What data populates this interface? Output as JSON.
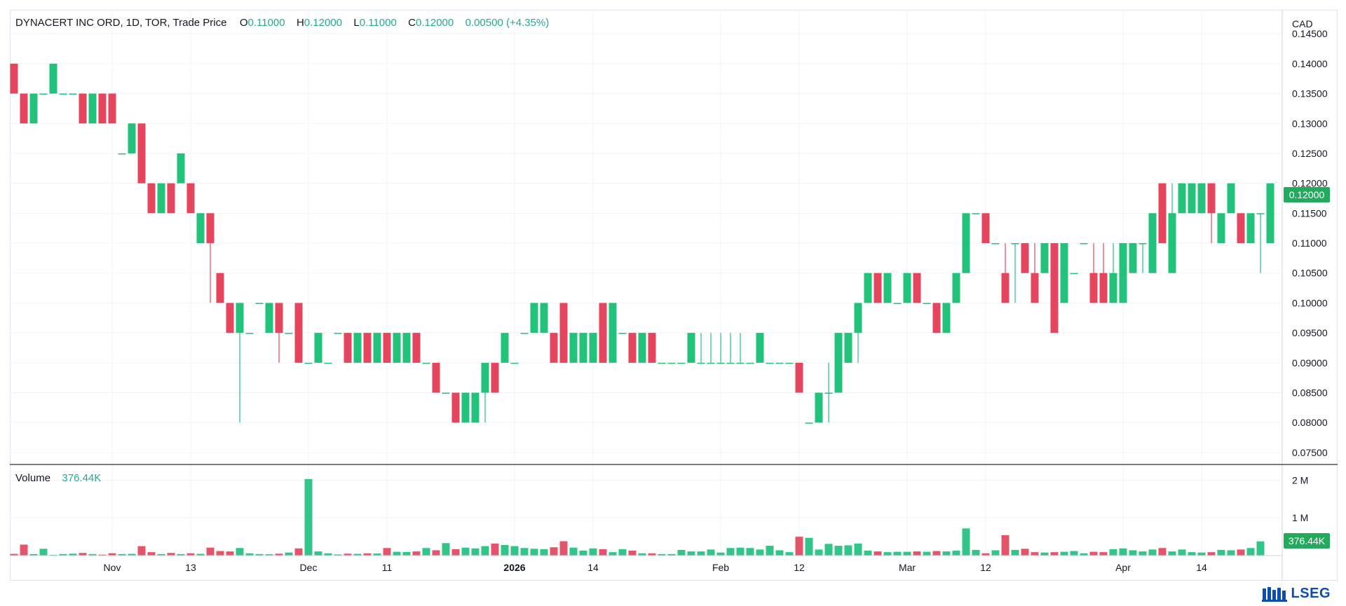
{
  "legend": {
    "symbol": "DYNACERT INC ORD, 1D, TOR, Trade Price",
    "o_label": "O",
    "o_value": "0.11000",
    "h_label": "H",
    "h_value": "0.12000",
    "l_label": "L",
    "l_value": "0.11000",
    "c_label": "C",
    "c_value": "0.12000",
    "change": "0.00500 (+4.35%)"
  },
  "volume_legend": {
    "label": "Volume",
    "value": "376.44K"
  },
  "currency": "CAD",
  "last_price_label": "0.12000",
  "last_volume_label": "376.44K",
  "brand": "LSEG",
  "colors": {
    "up": "#22c27a",
    "down": "#e5465e",
    "volume_up": "#33c48a",
    "volume_down": "#e4556b",
    "grid": "#f0f3fa",
    "text": "#131722"
  },
  "chart_data": {
    "type": "candlestick",
    "price_axis": {
      "ticks": [
        "0.14500",
        "0.14000",
        "0.13500",
        "0.13000",
        "0.12500",
        "0.12000",
        "0.11500",
        "0.11000",
        "0.10500",
        "0.10000",
        "0.09500",
        "0.09000",
        "0.08500",
        "0.08000",
        "0.07500"
      ],
      "range": [
        0.073,
        0.149
      ]
    },
    "volume_axis": {
      "ticks": [
        "2 M",
        "1 M"
      ],
      "range": [
        0,
        2100000
      ]
    },
    "x_axis_labels": [
      {
        "text": "Nov",
        "index": 10,
        "bold": false
      },
      {
        "text": "13",
        "index": 18,
        "bold": false
      },
      {
        "text": "Dec",
        "index": 30,
        "bold": false
      },
      {
        "text": "11",
        "index": 38,
        "bold": false
      },
      {
        "text": "2026",
        "index": 51,
        "bold": true
      },
      {
        "text": "14",
        "index": 59,
        "bold": false
      },
      {
        "text": "Feb",
        "index": 72,
        "bold": false
      },
      {
        "text": "12",
        "index": 80,
        "bold": false
      },
      {
        "text": "Mar",
        "index": 91,
        "bold": false
      },
      {
        "text": "12",
        "index": 99,
        "bold": false
      },
      {
        "text": "Apr",
        "index": 113,
        "bold": false
      },
      {
        "text": "14",
        "index": 121,
        "bold": false
      }
    ],
    "candles": [
      [
        0.14,
        0.14,
        0.135,
        0.135
      ],
      [
        0.135,
        0.135,
        0.13,
        0.13
      ],
      [
        0.13,
        0.135,
        0.13,
        0.135
      ],
      [
        0.135,
        0.135,
        0.135,
        0.135
      ],
      [
        0.135,
        0.14,
        0.135,
        0.14
      ],
      [
        0.135,
        0.135,
        0.135,
        0.135
      ],
      [
        0.135,
        0.135,
        0.135,
        0.135
      ],
      [
        0.135,
        0.135,
        0.13,
        0.13
      ],
      [
        0.13,
        0.135,
        0.13,
        0.135
      ],
      [
        0.135,
        0.135,
        0.13,
        0.13
      ],
      [
        0.135,
        0.135,
        0.13,
        0.13
      ],
      [
        0.125,
        0.125,
        0.125,
        0.125
      ],
      [
        0.125,
        0.13,
        0.125,
        0.13
      ],
      [
        0.13,
        0.13,
        0.12,
        0.12
      ],
      [
        0.12,
        0.12,
        0.115,
        0.115
      ],
      [
        0.115,
        0.12,
        0.115,
        0.12
      ],
      [
        0.12,
        0.12,
        0.115,
        0.115
      ],
      [
        0.12,
        0.125,
        0.12,
        0.125
      ],
      [
        0.12,
        0.12,
        0.115,
        0.115
      ],
      [
        0.11,
        0.115,
        0.11,
        0.115
      ],
      [
        0.115,
        0.115,
        0.1,
        0.11
      ],
      [
        0.105,
        0.105,
        0.1,
        0.1
      ],
      [
        0.1,
        0.1,
        0.095,
        0.095
      ],
      [
        0.095,
        0.1,
        0.08,
        0.1
      ],
      [
        0.095,
        0.095,
        0.095,
        0.095
      ],
      [
        0.1,
        0.1,
        0.1,
        0.1
      ],
      [
        0.095,
        0.1,
        0.095,
        0.1
      ],
      [
        0.1,
        0.1,
        0.09,
        0.095
      ],
      [
        0.095,
        0.095,
        0.095,
        0.095
      ],
      [
        0.1,
        0.1,
        0.09,
        0.09
      ],
      [
        0.09,
        0.09,
        0.09,
        0.09
      ],
      [
        0.09,
        0.095,
        0.09,
        0.095
      ],
      [
        0.09,
        0.09,
        0.09,
        0.09
      ],
      [
        0.095,
        0.095,
        0.095,
        0.095
      ],
      [
        0.095,
        0.095,
        0.09,
        0.09
      ],
      [
        0.09,
        0.095,
        0.09,
        0.095
      ],
      [
        0.095,
        0.095,
        0.09,
        0.09
      ],
      [
        0.09,
        0.095,
        0.09,
        0.095
      ],
      [
        0.095,
        0.095,
        0.09,
        0.09
      ],
      [
        0.09,
        0.095,
        0.09,
        0.095
      ],
      [
        0.09,
        0.095,
        0.09,
        0.095
      ],
      [
        0.095,
        0.095,
        0.09,
        0.09
      ],
      [
        0.09,
        0.09,
        0.09,
        0.09
      ],
      [
        0.09,
        0.09,
        0.085,
        0.085
      ],
      [
        0.085,
        0.085,
        0.085,
        0.085
      ],
      [
        0.085,
        0.085,
        0.08,
        0.08
      ],
      [
        0.08,
        0.085,
        0.08,
        0.085
      ],
      [
        0.08,
        0.085,
        0.08,
        0.085
      ],
      [
        0.085,
        0.09,
        0.08,
        0.09
      ],
      [
        0.09,
        0.09,
        0.085,
        0.085
      ],
      [
        0.09,
        0.095,
        0.09,
        0.095
      ],
      [
        0.09,
        0.09,
        0.09,
        0.09
      ],
      [
        0.095,
        0.095,
        0.095,
        0.095
      ],
      [
        0.095,
        0.1,
        0.095,
        0.1
      ],
      [
        0.095,
        0.1,
        0.095,
        0.1
      ],
      [
        0.095,
        0.095,
        0.09,
        0.09
      ],
      [
        0.1,
        0.1,
        0.09,
        0.09
      ],
      [
        0.09,
        0.095,
        0.09,
        0.095
      ],
      [
        0.09,
        0.095,
        0.09,
        0.095
      ],
      [
        0.09,
        0.095,
        0.09,
        0.095
      ],
      [
        0.1,
        0.1,
        0.09,
        0.09
      ],
      [
        0.09,
        0.1,
        0.09,
        0.1
      ],
      [
        0.095,
        0.095,
        0.095,
        0.095
      ],
      [
        0.095,
        0.095,
        0.09,
        0.09
      ],
      [
        0.09,
        0.095,
        0.09,
        0.095
      ],
      [
        0.095,
        0.095,
        0.09,
        0.09
      ],
      [
        0.09,
        0.09,
        0.09,
        0.09
      ],
      [
        0.09,
        0.09,
        0.09,
        0.09
      ],
      [
        0.09,
        0.09,
        0.09,
        0.09
      ],
      [
        0.09,
        0.095,
        0.09,
        0.095
      ],
      [
        0.09,
        0.095,
        0.09,
        0.09
      ],
      [
        0.09,
        0.095,
        0.09,
        0.09
      ],
      [
        0.09,
        0.095,
        0.09,
        0.09
      ],
      [
        0.09,
        0.095,
        0.09,
        0.09
      ],
      [
        0.09,
        0.095,
        0.09,
        0.09
      ],
      [
        0.09,
        0.09,
        0.09,
        0.09
      ],
      [
        0.09,
        0.095,
        0.09,
        0.095
      ],
      [
        0.09,
        0.09,
        0.09,
        0.09
      ],
      [
        0.09,
        0.09,
        0.09,
        0.09
      ],
      [
        0.09,
        0.09,
        0.09,
        0.09
      ],
      [
        0.09,
        0.09,
        0.085,
        0.085
      ],
      [
        0.08,
        0.08,
        0.08,
        0.08
      ],
      [
        0.08,
        0.085,
        0.08,
        0.085
      ],
      [
        0.085,
        0.09,
        0.08,
        0.085
      ],
      [
        0.085,
        0.095,
        0.085,
        0.095
      ],
      [
        0.09,
        0.095,
        0.09,
        0.095
      ],
      [
        0.095,
        0.1,
        0.09,
        0.1
      ],
      [
        0.1,
        0.105,
        0.1,
        0.105
      ],
      [
        0.105,
        0.105,
        0.1,
        0.1
      ],
      [
        0.1,
        0.105,
        0.1,
        0.105
      ],
      [
        0.1,
        0.1,
        0.1,
        0.1
      ],
      [
        0.1,
        0.105,
        0.1,
        0.105
      ],
      [
        0.105,
        0.105,
        0.1,
        0.1
      ],
      [
        0.1,
        0.1,
        0.1,
        0.1
      ],
      [
        0.1,
        0.1,
        0.095,
        0.095
      ],
      [
        0.095,
        0.1,
        0.095,
        0.1
      ],
      [
        0.1,
        0.105,
        0.1,
        0.105
      ],
      [
        0.105,
        0.115,
        0.105,
        0.115
      ],
      [
        0.115,
        0.115,
        0.115,
        0.115
      ],
      [
        0.115,
        0.115,
        0.11,
        0.11
      ],
      [
        0.11,
        0.11,
        0.11,
        0.11
      ],
      [
        0.105,
        0.11,
        0.1,
        0.1
      ],
      [
        0.11,
        0.11,
        0.1,
        0.11
      ],
      [
        0.11,
        0.11,
        0.105,
        0.105
      ],
      [
        0.105,
        0.11,
        0.1,
        0.1
      ],
      [
        0.105,
        0.11,
        0.105,
        0.11
      ],
      [
        0.11,
        0.11,
        0.095,
        0.095
      ],
      [
        0.1,
        0.11,
        0.1,
        0.11
      ],
      [
        0.105,
        0.105,
        0.105,
        0.105
      ],
      [
        0.11,
        0.11,
        0.11,
        0.11
      ],
      [
        0.105,
        0.11,
        0.1,
        0.1
      ],
      [
        0.105,
        0.11,
        0.1,
        0.1
      ],
      [
        0.1,
        0.11,
        0.1,
        0.105
      ],
      [
        0.1,
        0.11,
        0.1,
        0.11
      ],
      [
        0.105,
        0.11,
        0.105,
        0.11
      ],
      [
        0.11,
        0.11,
        0.105,
        0.11
      ],
      [
        0.105,
        0.115,
        0.105,
        0.115
      ],
      [
        0.12,
        0.12,
        0.11,
        0.11
      ],
      [
        0.105,
        0.12,
        0.105,
        0.115
      ],
      [
        0.115,
        0.12,
        0.115,
        0.12
      ],
      [
        0.115,
        0.12,
        0.115,
        0.12
      ],
      [
        0.115,
        0.12,
        0.115,
        0.12
      ],
      [
        0.12,
        0.12,
        0.11,
        0.115
      ],
      [
        0.11,
        0.115,
        0.11,
        0.115
      ],
      [
        0.115,
        0.12,
        0.115,
        0.12
      ],
      [
        0.115,
        0.115,
        0.11,
        0.11
      ],
      [
        0.11,
        0.115,
        0.11,
        0.115
      ],
      [
        0.115,
        0.115,
        0.105,
        0.115
      ],
      [
        0.11,
        0.12,
        0.11,
        0.12
      ]
    ],
    "volumes": [
      45000,
      290000,
      40000,
      180000,
      20000,
      40000,
      50000,
      70000,
      40000,
      25000,
      60000,
      40000,
      45000,
      250000,
      90000,
      40000,
      70000,
      40000,
      60000,
      45000,
      210000,
      120000,
      110000,
      200000,
      60000,
      40000,
      35000,
      50000,
      80000,
      190000,
      2030000,
      110000,
      60000,
      30000,
      50000,
      45000,
      60000,
      55000,
      200000,
      100000,
      95000,
      110000,
      200000,
      140000,
      330000,
      170000,
      210000,
      190000,
      250000,
      320000,
      280000,
      250000,
      200000,
      180000,
      170000,
      220000,
      380000,
      210000,
      130000,
      190000,
      170000,
      90000,
      170000,
      130000,
      60000,
      60000,
      40000,
      40000,
      150000,
      110000,
      110000,
      160000,
      80000,
      200000,
      210000,
      200000,
      160000,
      260000,
      140000,
      90000,
      500000,
      470000,
      160000,
      310000,
      260000,
      270000,
      320000,
      130000,
      110000,
      90000,
      100000,
      100000,
      110000,
      100000,
      120000,
      110000,
      130000,
      720000,
      150000,
      60000,
      140000,
      540000,
      150000,
      180000,
      90000,
      80000,
      90000,
      100000,
      120000,
      60000,
      100000,
      90000,
      170000,
      190000,
      140000,
      110000,
      160000,
      200000,
      110000,
      160000,
      90000,
      80000,
      90000,
      150000,
      140000,
      160000,
      200000,
      376440
    ]
  }
}
